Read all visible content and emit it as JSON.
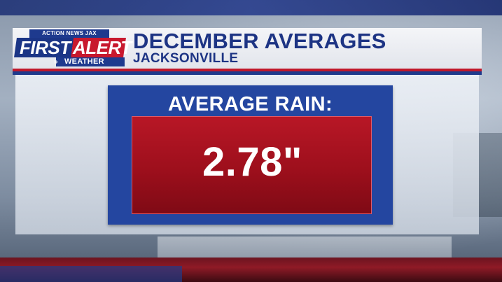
{
  "logo": {
    "network": "ACTION NEWS JAX",
    "word1": "FIRST",
    "word2": "ALERT",
    "chevrons": "»",
    "word3": "WEATHER"
  },
  "header": {
    "title": "DECEMBER AVERAGES",
    "subtitle": "JACKSONVILLE"
  },
  "main": {
    "label": "AVERAGE RAIN:",
    "value": "2.78\""
  },
  "colors": {
    "brand_blue": "#1d3484",
    "brand_red": "#c0182b",
    "card_blue": "#2446a0",
    "value_red": "#b81726"
  }
}
